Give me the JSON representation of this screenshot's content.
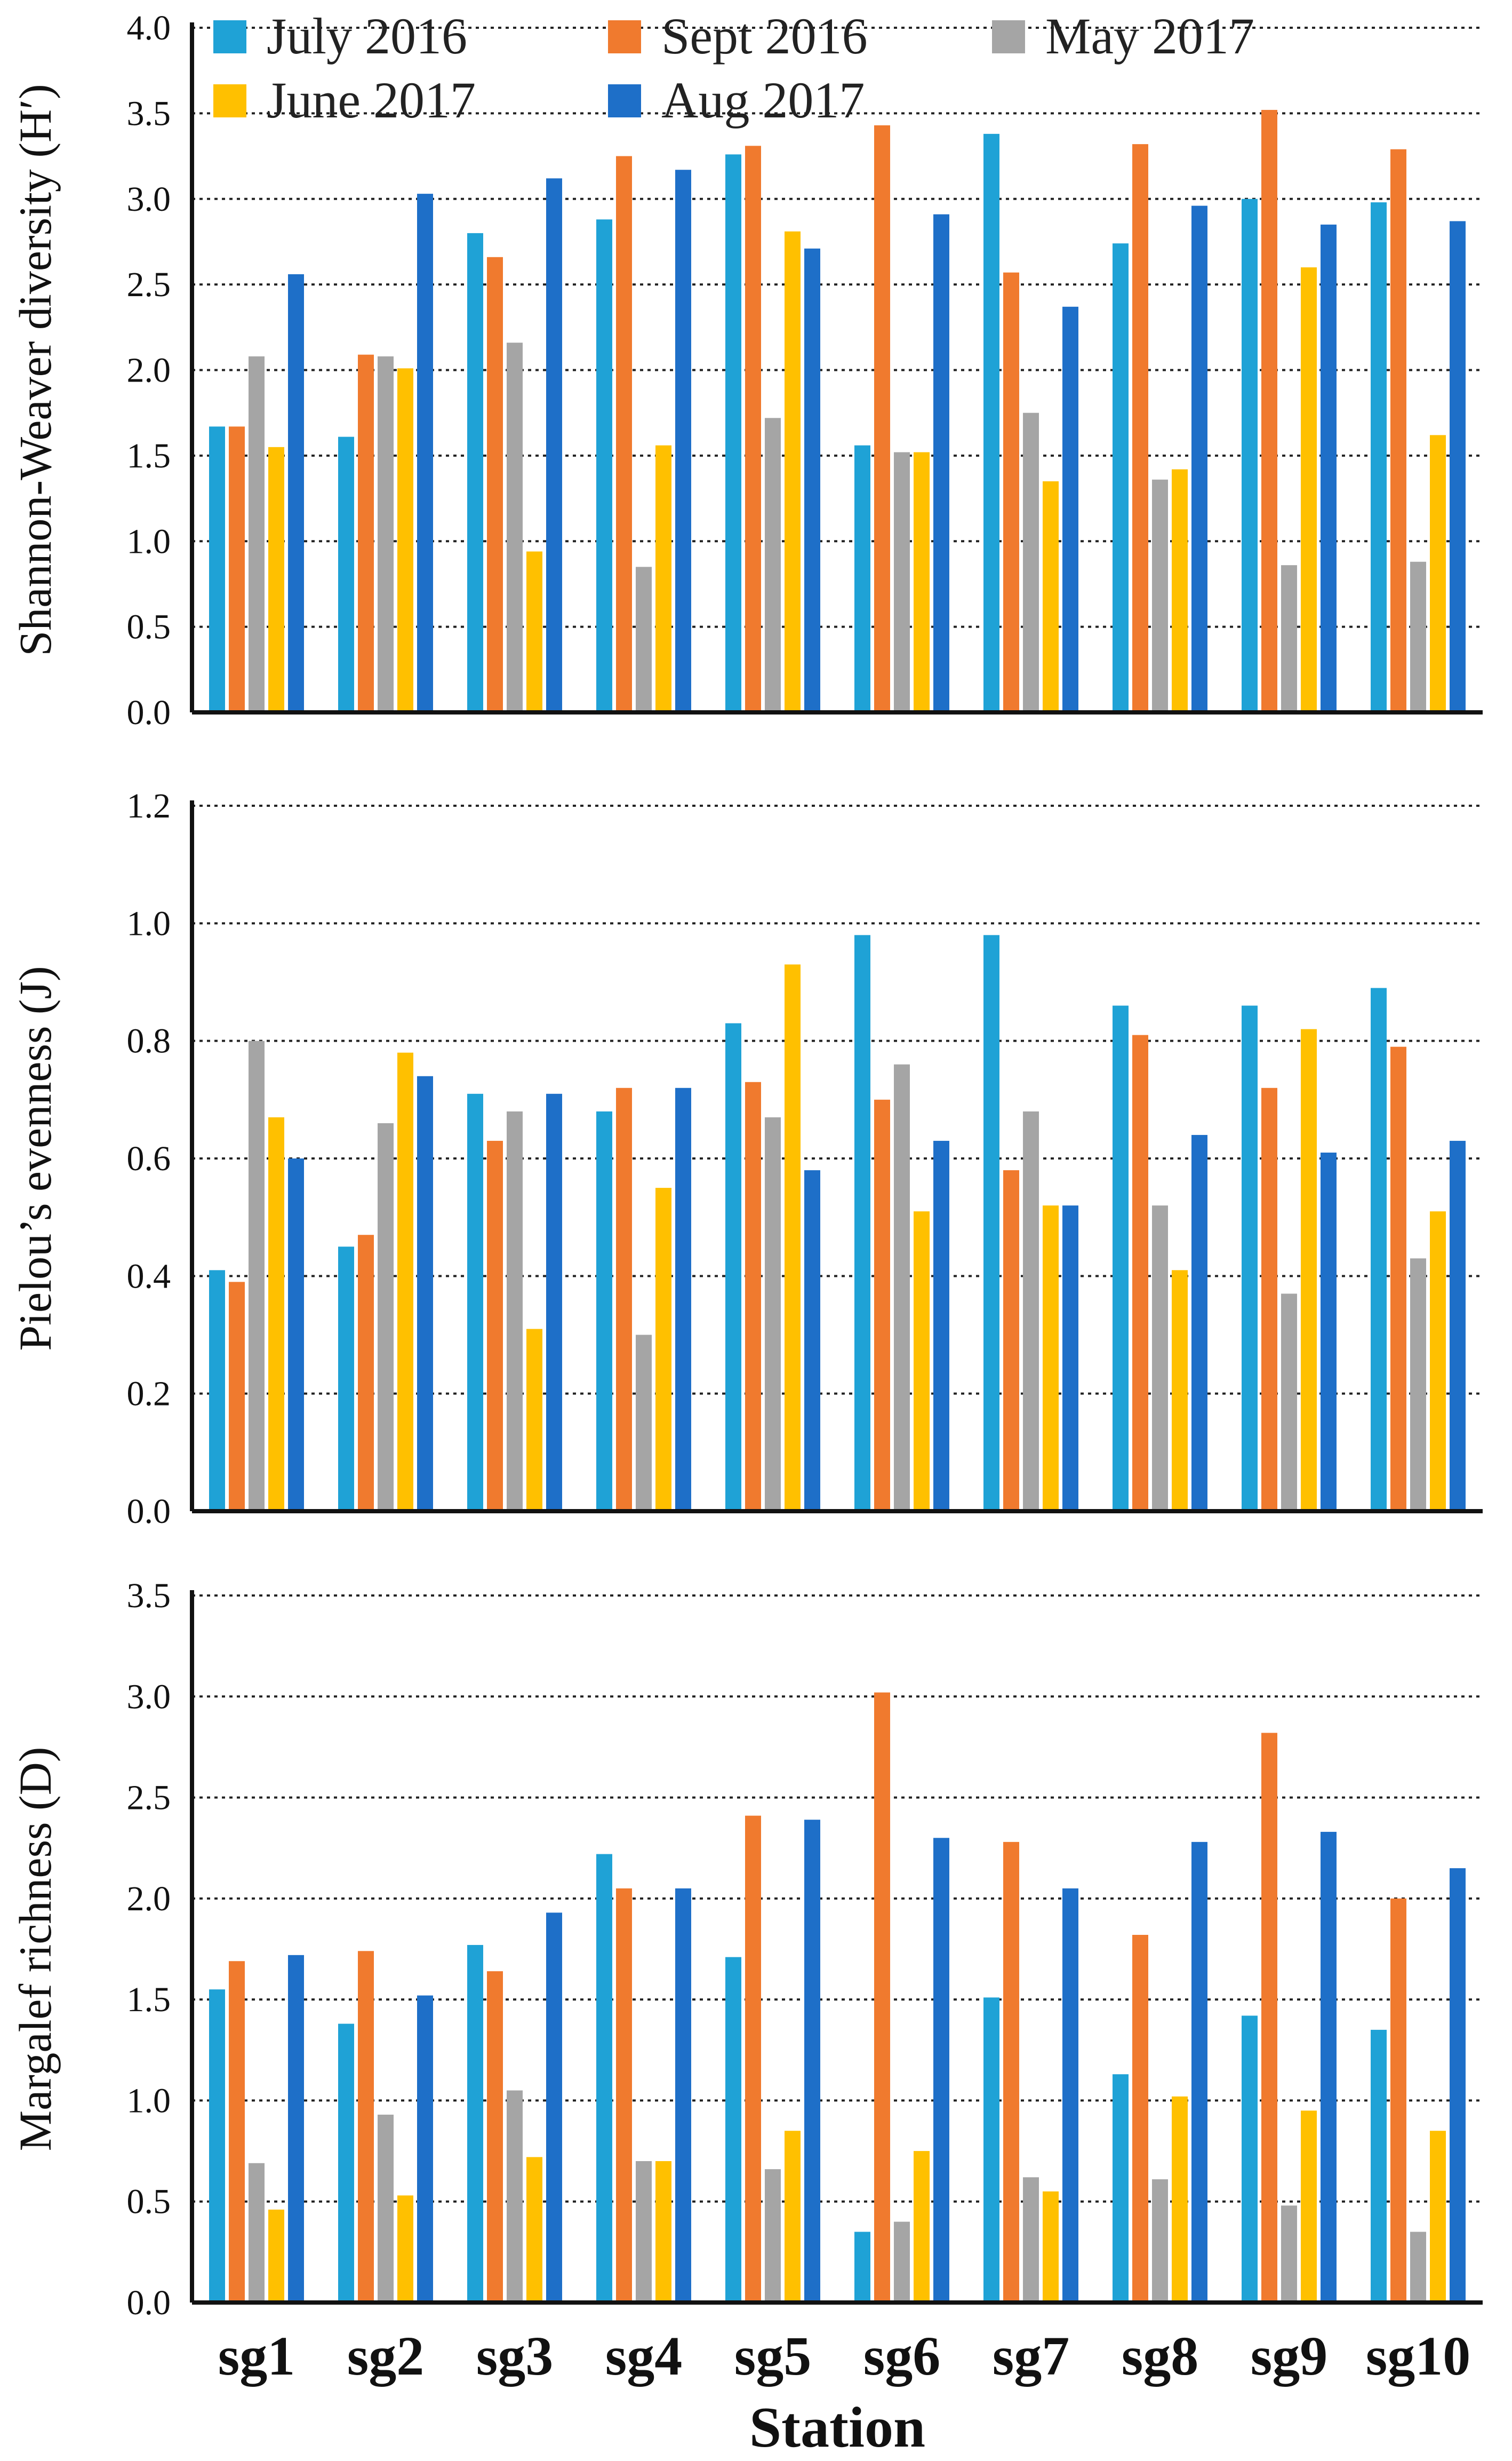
{
  "chart_data": {
    "type": "bar",
    "xlabel": "Station",
    "categories": [
      "sg1",
      "sg2",
      "sg3",
      "sg4",
      "sg5",
      "sg6",
      "sg7",
      "sg8",
      "sg9",
      "sg10"
    ],
    "series_names": [
      "July 2016",
      "Sept 2016",
      "May 2017",
      "June 2017",
      "Aug 2017"
    ],
    "colors": [
      "#1fa2d6",
      "#f07a2e",
      "#a5a5a5",
      "#ffc000",
      "#1e6fc8"
    ],
    "legend_placement": "top",
    "panels": [
      {
        "ylabel": "Shannon-Weaver diversity (H′)",
        "ylim": [
          0,
          4.0
        ],
        "yticks": [
          0.0,
          0.5,
          1.0,
          1.5,
          2.0,
          2.5,
          3.0,
          3.5,
          4.0
        ],
        "ytick_labels": [
          "0.0",
          "0.5",
          "1.0",
          "1.5",
          "2.0",
          "2.5",
          "3.0",
          "3.5",
          "4.0"
        ],
        "grid": true,
        "series": [
          {
            "name": "July 2016",
            "values": [
              1.67,
              1.61,
              2.8,
              2.88,
              3.26,
              1.56,
              3.38,
              2.74,
              3.0,
              2.98
            ]
          },
          {
            "name": "Sept 2016",
            "values": [
              1.67,
              2.09,
              2.66,
              3.25,
              3.31,
              3.43,
              2.57,
              3.32,
              3.52,
              3.29
            ]
          },
          {
            "name": "May 2017",
            "values": [
              2.08,
              2.08,
              2.16,
              0.85,
              1.72,
              1.52,
              1.75,
              1.36,
              0.86,
              0.88
            ]
          },
          {
            "name": "June 2017",
            "values": [
              1.55,
              2.01,
              0.94,
              1.56,
              2.81,
              1.52,
              1.35,
              1.42,
              2.6,
              1.62
            ]
          },
          {
            "name": "Aug 2017",
            "values": [
              2.56,
              3.03,
              3.12,
              3.17,
              2.71,
              2.91,
              2.37,
              2.96,
              2.85,
              2.87
            ]
          }
        ]
      },
      {
        "ylabel": "Pielou’s evenness (J)",
        "ylim": [
          0,
          1.2
        ],
        "yticks": [
          0.0,
          0.2,
          0.4,
          0.6,
          0.8,
          1.0,
          1.2
        ],
        "ytick_labels": [
          "0.0",
          "0.2",
          "0.4",
          "0.6",
          "0.8",
          "1.0",
          "1.2"
        ],
        "grid": true,
        "series": [
          {
            "name": "July 2016",
            "values": [
              0.41,
              0.45,
              0.71,
              0.68,
              0.83,
              0.98,
              0.98,
              0.86,
              0.86,
              0.89
            ]
          },
          {
            "name": "Sept 2016",
            "values": [
              0.39,
              0.47,
              0.63,
              0.72,
              0.73,
              0.7,
              0.58,
              0.81,
              0.72,
              0.79
            ]
          },
          {
            "name": "May 2017",
            "values": [
              0.8,
              0.66,
              0.68,
              0.3,
              0.67,
              0.76,
              0.68,
              0.52,
              0.37,
              0.43
            ]
          },
          {
            "name": "June 2017",
            "values": [
              0.67,
              0.78,
              0.31,
              0.55,
              0.93,
              0.51,
              0.52,
              0.41,
              0.82,
              0.51
            ]
          },
          {
            "name": "Aug 2017",
            "values": [
              0.6,
              0.74,
              0.71,
              0.72,
              0.58,
              0.63,
              0.52,
              0.64,
              0.61,
              0.63
            ]
          }
        ]
      },
      {
        "ylabel": "Margalef richness (D)",
        "ylim": [
          0,
          3.5
        ],
        "yticks": [
          0.0,
          0.5,
          1.0,
          1.5,
          2.0,
          2.5,
          3.0,
          3.5
        ],
        "ytick_labels": [
          "0.0",
          "0.5",
          "1.0",
          "1.5",
          "2.0",
          "2.5",
          "3.0",
          "3.5"
        ],
        "grid": true,
        "series": [
          {
            "name": "July 2016",
            "values": [
              1.55,
              1.38,
              1.77,
              2.22,
              1.71,
              0.35,
              1.51,
              1.13,
              1.42,
              1.35
            ]
          },
          {
            "name": "Sept 2016",
            "values": [
              1.69,
              1.74,
              1.64,
              2.05,
              2.41,
              3.02,
              2.28,
              1.82,
              2.82,
              2.0
            ]
          },
          {
            "name": "May 2017",
            "values": [
              0.69,
              0.93,
              1.05,
              0.7,
              0.66,
              0.4,
              0.62,
              0.61,
              0.48,
              0.35
            ]
          },
          {
            "name": "June 2017",
            "values": [
              0.46,
              0.53,
              0.72,
              0.7,
              0.85,
              0.75,
              0.55,
              1.02,
              0.95,
              0.85
            ]
          },
          {
            "name": "Aug 2017",
            "values": [
              1.72,
              1.52,
              1.93,
              2.05,
              2.39,
              2.3,
              2.05,
              2.28,
              2.33,
              2.15
            ]
          }
        ]
      }
    ]
  }
}
